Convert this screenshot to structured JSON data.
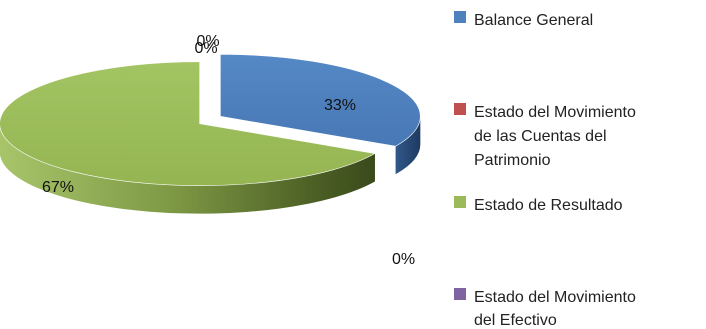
{
  "chart_data": {
    "type": "pie",
    "style": "3d-exploded",
    "title": "",
    "categories": [
      "Balance General",
      "Estado del Movimiento de las Cuentas del Patrimonio",
      "Estado de Resultado",
      "Estado del Movimiento del Efectivo"
    ],
    "values": [
      33,
      0,
      67,
      0
    ],
    "data_labels": [
      "33%",
      "0%",
      "67%",
      "0%"
    ],
    "legend": {
      "placement": "right",
      "items": [
        {
          "label": "Balance General",
          "color": "#4F81BD"
        },
        {
          "label": "Estado del Movimiento de las Cuentas del Patrimonio",
          "color": "#C0504D"
        },
        {
          "label": "Estado de Resultado",
          "color": "#9BBB59"
        },
        {
          "label": "Estado del Movimiento del Efectivo",
          "color": "#8064A2"
        }
      ]
    }
  }
}
